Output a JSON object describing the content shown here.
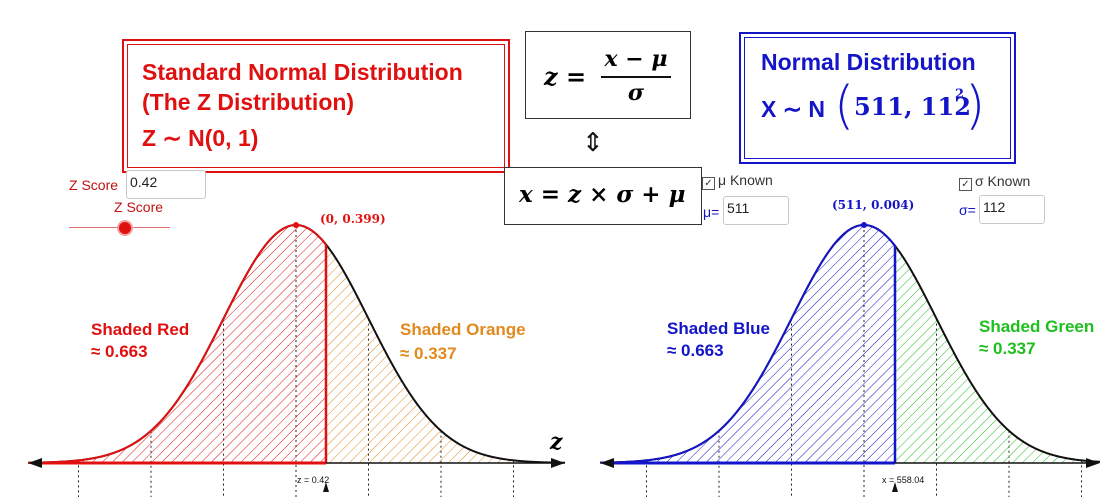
{
  "left_panel": {
    "title_line1": "Standard Normal Distribution",
    "title_line2": "(The Z Distribution)",
    "title_line3": "Z ∼ N(0, 1)",
    "z_score_label": "Z Score",
    "z_score_value": "0.42",
    "slider_label": "Z Score",
    "slider_fraction": 0.55,
    "peak_label": "(0, 0.399)",
    "shaded_left_label": "Shaded Red",
    "shaded_left_value": "≈ 0.663",
    "shaded_right_label": "Shaded Orange",
    "shaded_right_value": "≈ 0.337",
    "axis_var": "z",
    "marker_label": "z = 0.42"
  },
  "formulas": {
    "z_lhs": "z =",
    "z_num": "x − μ",
    "z_den": "σ",
    "arrow": "⇕",
    "x_formula": "x = z × σ + μ"
  },
  "right_panel": {
    "title": "Normal Distribution",
    "dist_prefix": "X ∼ N",
    "dist_params": "511, 112",
    "dist_exp": "2",
    "mu_known_label": "μ Known",
    "mu_label": "μ=",
    "mu_value": "511",
    "sigma_known_label": "σ Known",
    "sigma_label": "σ=",
    "sigma_value": "112",
    "peak_label": "(511, 0.004)",
    "shaded_left_label": "Shaded Blue",
    "shaded_left_value": "≈ 0.663",
    "shaded_right_label": "Shaded Green",
    "shaded_right_value": "≈ 0.337",
    "marker_label": "x = 558.04"
  },
  "colors": {
    "red": "#e01010",
    "orange": "#e08a1e",
    "blue": "#1414c8",
    "green": "#1fbf1f",
    "curve": "#111111"
  }
}
